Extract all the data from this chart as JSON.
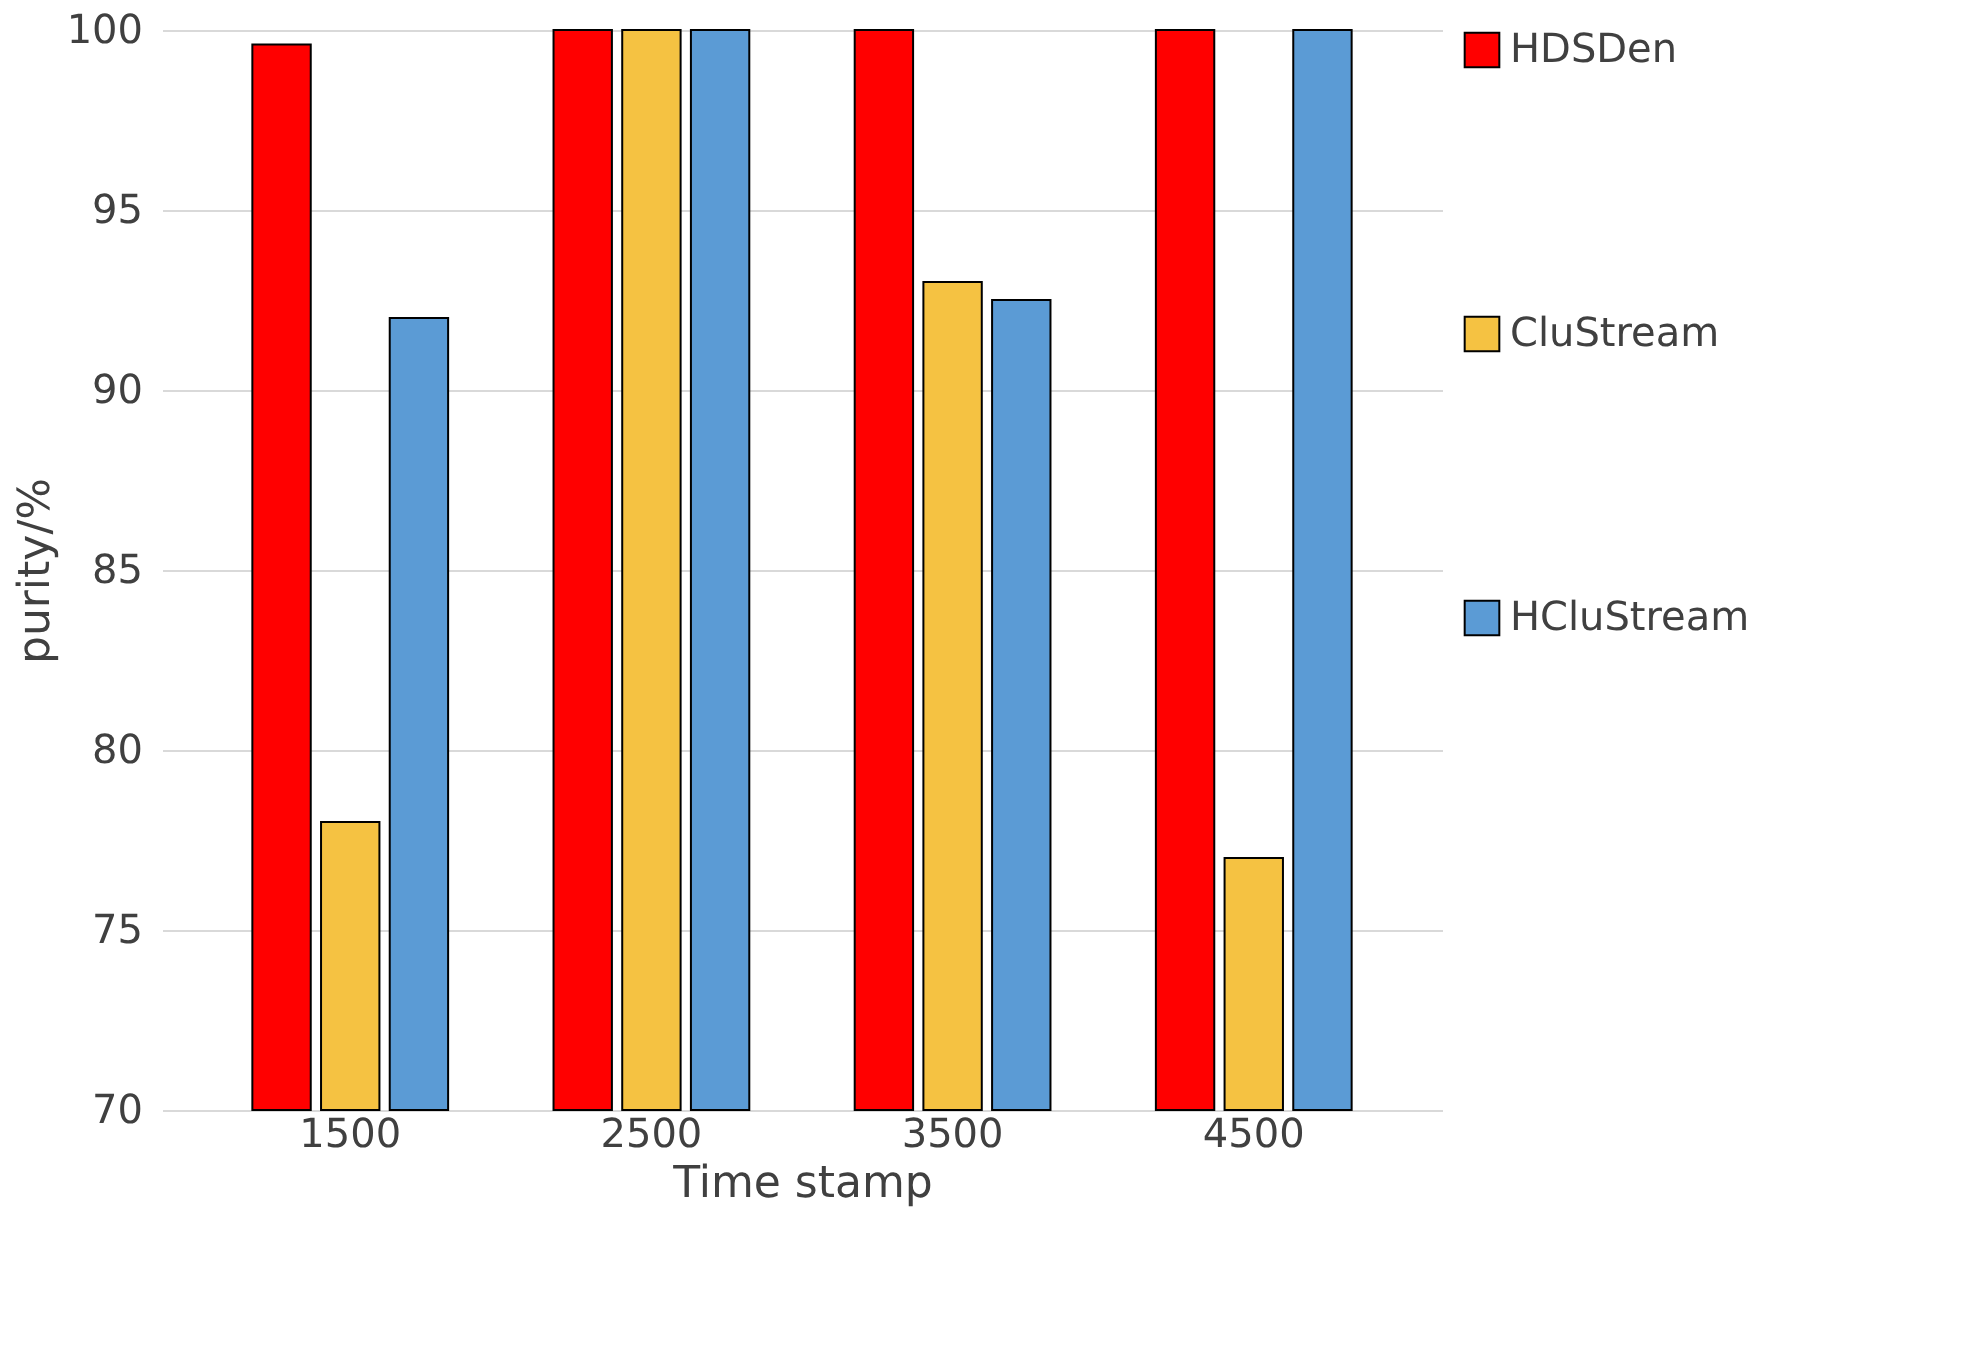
{
  "chart_data": {
    "type": "bar",
    "xlabel": "Time stamp",
    "ylabel": "purity/%",
    "categories": [
      "1500",
      "2500",
      "3500",
      "4500"
    ],
    "series": [
      {
        "name": "HDSDen",
        "color": "#ff0000",
        "values": [
          99.6,
          100,
          100,
          100
        ]
      },
      {
        "name": "CluStream",
        "color": "#f5c242",
        "values": [
          78,
          100,
          93,
          77
        ]
      },
      {
        "name": "HCluStream",
        "color": "#5b9bd5",
        "values": [
          92,
          100,
          92.5,
          100
        ]
      }
    ],
    "ylim": [
      70,
      100
    ],
    "yticks": [
      70,
      75,
      80,
      85,
      90,
      95,
      100
    ],
    "grid": "y",
    "legend": "right"
  }
}
